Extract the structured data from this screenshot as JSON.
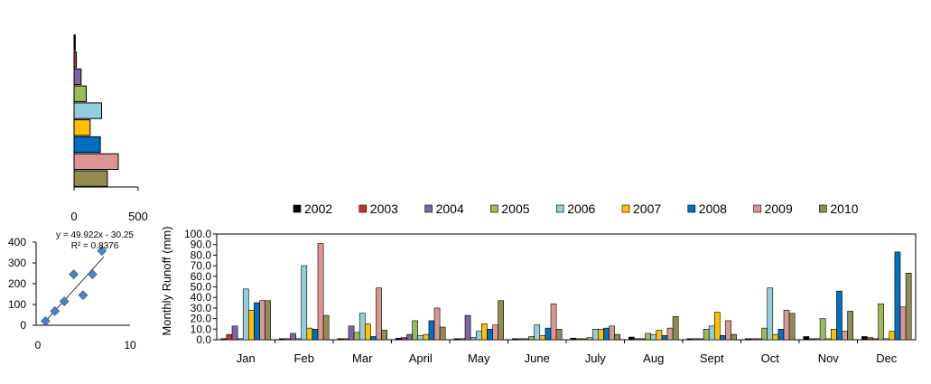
{
  "chart_data": [
    {
      "type": "bar",
      "orientation": "horizontal",
      "title": "",
      "xlabel": "",
      "ylabel": "",
      "categories": [
        "2002",
        "2003",
        "2004",
        "2005",
        "2006",
        "2007",
        "2008",
        "2009",
        "2010"
      ],
      "values": [
        10,
        18,
        55,
        95,
        215,
        125,
        205,
        345,
        260
      ],
      "colors": [
        "#000000",
        "#c0392b",
        "#8064a2",
        "#9bbb59",
        "#93cddd",
        "#ffc000",
        "#0070c0",
        "#d99694",
        "#948a54"
      ],
      "xlim": [
        0,
        500
      ],
      "xticks": [
        0,
        500
      ],
      "grid": false
    },
    {
      "type": "scatter",
      "title": "",
      "xlabel": "",
      "ylabel": "",
      "points": [
        {
          "x": 1,
          "y": 20
        },
        {
          "x": 2,
          "y": 68
        },
        {
          "x": 3,
          "y": 115
        },
        {
          "x": 4,
          "y": 245
        },
        {
          "x": 5,
          "y": 145
        },
        {
          "x": 6,
          "y": 245
        },
        {
          "x": 7,
          "y": 358
        }
      ],
      "trendline": {
        "slope": 49.922,
        "intercept": -30.25
      },
      "equation": "y = 49.922x - 30.25",
      "r2_label": "R² = 0.8376",
      "xlim": [
        0,
        10
      ],
      "ylim": [
        0,
        400
      ],
      "xticks": [
        0,
        10
      ],
      "yticks": [
        0,
        100,
        200,
        300,
        400
      ],
      "marker_color": "#4f81bd"
    },
    {
      "type": "bar",
      "title": "",
      "xlabel": "",
      "ylabel": "Monthly  Runoff (mm)",
      "categories": [
        "Jan",
        "Feb",
        "Mar",
        "April",
        "May",
        "June",
        "July",
        "Aug",
        "Sept",
        "Oct",
        "Nov",
        "Dec"
      ],
      "ylim": [
        0,
        100
      ],
      "yticks": [
        "0.0",
        "10.0",
        "20.0",
        "30.0",
        "40.0",
        "50.0",
        "60.0",
        "70.0",
        "80.0",
        "90.0",
        "100.0"
      ],
      "legend_position": "top",
      "grid": false,
      "series": [
        {
          "name": "2002",
          "color": "#000000",
          "values": [
            1.0,
            1.0,
            1.0,
            1.5,
            1.0,
            1.0,
            1.5,
            2.5,
            1.0,
            1.0,
            3.0,
            3.0
          ]
        },
        {
          "name": "2003",
          "color": "#c0392b",
          "values": [
            5.0,
            1.0,
            1.0,
            2.0,
            1.0,
            1.0,
            1.0,
            1.0,
            1.0,
            1.0,
            1.0,
            2.0
          ]
        },
        {
          "name": "2004",
          "color": "#8064a2",
          "values": [
            13.0,
            6.0,
            13.0,
            5.0,
            23.0,
            1.0,
            1.0,
            1.0,
            1.0,
            1.0,
            1.0,
            1.0
          ]
        },
        {
          "name": "2005",
          "color": "#9bbb59",
          "values": [
            1.0,
            1.0,
            7.0,
            18.0,
            2.0,
            3.0,
            2.0,
            6.0,
            10.0,
            11.0,
            20.0,
            34.0
          ]
        },
        {
          "name": "2006",
          "color": "#93cddd",
          "values": [
            48.0,
            70.0,
            25.0,
            4.0,
            8.0,
            14.0,
            10.0,
            5.0,
            13.0,
            49.0,
            1.0,
            1.0
          ]
        },
        {
          "name": "2007",
          "color": "#ffc000",
          "values": [
            28.0,
            11.0,
            15.0,
            5.0,
            15.0,
            4.0,
            10.0,
            9.0,
            26.0,
            5.0,
            10.0,
            8.0
          ]
        },
        {
          "name": "2008",
          "color": "#0070c0",
          "values": [
            35.0,
            10.0,
            3.0,
            18.0,
            10.0,
            11.0,
            11.0,
            4.0,
            4.0,
            10.0,
            46.0,
            83.0
          ]
        },
        {
          "name": "2009",
          "color": "#d99694",
          "values": [
            37.0,
            91.0,
            49.0,
            30.0,
            14.0,
            34.0,
            13.0,
            11.0,
            18.0,
            28.0,
            8.0,
            31.0
          ]
        },
        {
          "name": "2010",
          "color": "#948a54",
          "values": [
            37.0,
            23.0,
            9.0,
            12.0,
            37.0,
            10.0,
            5.0,
            22.0,
            5.0,
            25.0,
            27.0,
            63.0
          ]
        }
      ]
    }
  ]
}
